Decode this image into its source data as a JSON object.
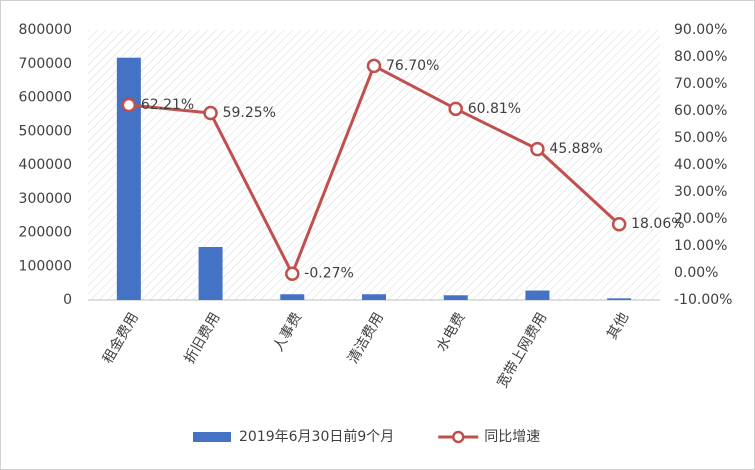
{
  "chart_data": {
    "type": "combo",
    "categories": [
      "租金费用",
      "折旧费用",
      "人事费",
      "清洁费用",
      "水电费",
      "宽带上网费用",
      "其他"
    ],
    "series": [
      {
        "name": "2019年6月30日前9个月",
        "type": "bar",
        "color": "#4472c4",
        "values": [
          718000,
          157000,
          17000,
          17000,
          14000,
          28000,
          5000
        ]
      },
      {
        "name": "同比增速",
        "type": "line",
        "axis": "y2",
        "color": "#c0504d",
        "values": [
          62.21,
          59.25,
          -0.27,
          76.7,
          60.81,
          45.88,
          18.06
        ],
        "value_labels": [
          "62.21%",
          "59.25%",
          "-0.27%",
          "76.70%",
          "60.81%",
          "45.88%",
          "18.06%"
        ]
      }
    ],
    "ylim": [
      0,
      800000
    ],
    "yticks": [
      0,
      100000,
      200000,
      300000,
      400000,
      500000,
      600000,
      700000,
      800000
    ],
    "y2lim": [
      -10,
      90
    ],
    "y2ticks": [
      {
        "value": -10,
        "label": "-10.00%"
      },
      {
        "value": 0,
        "label": "0.00%"
      },
      {
        "value": 10,
        "label": "10.00%"
      },
      {
        "value": 20,
        "label": "20.00%"
      },
      {
        "value": 30,
        "label": "30.00%"
      },
      {
        "value": 40,
        "label": "40.00%"
      },
      {
        "value": 50,
        "label": "50.00%"
      },
      {
        "value": 60,
        "label": "60.00%"
      },
      {
        "value": 70,
        "label": "70.00%"
      },
      {
        "value": 80,
        "label": "80.00%"
      },
      {
        "value": 90,
        "label": "90.00%"
      }
    ],
    "legend": "bottom"
  }
}
